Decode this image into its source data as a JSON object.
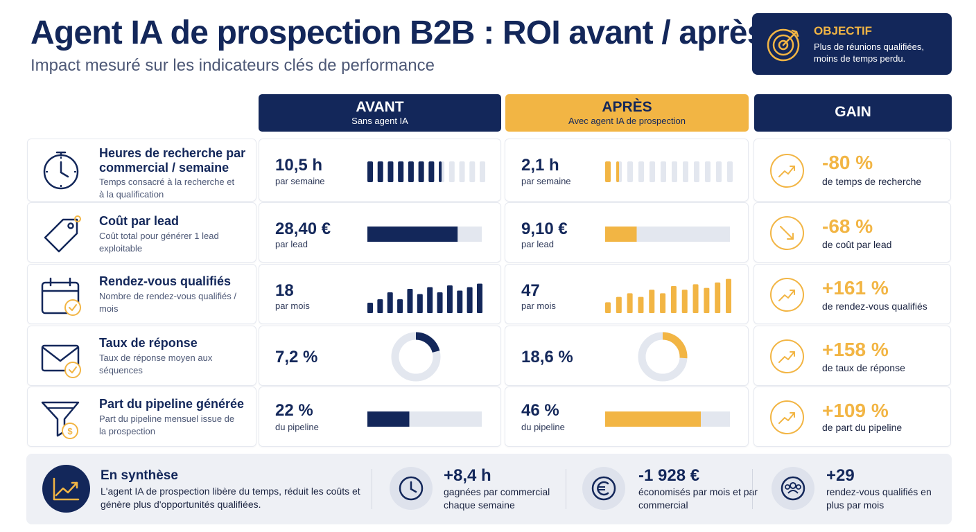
{
  "title": "Agent IA de prospection B2B : ROI avant / après",
  "subtitle": "Impact mesuré sur les indicateurs clés de performance",
  "objective": {
    "title": "OBJECTIF",
    "text": "Plus de réunions qualifiées, moins de temps perdu."
  },
  "columns": {
    "avant": {
      "title": "AVANT",
      "subtitle": "Sans agent IA"
    },
    "apres": {
      "title": "APRÈS",
      "subtitle": "Avec agent IA de prospection"
    },
    "gain": {
      "title": "GAIN"
    }
  },
  "colors": {
    "navy": "#13275a",
    "gold": "#f2b544",
    "track": "#e3e7ef"
  },
  "rows": [
    {
      "icon": "clock-icon",
      "title": "Heures de recherche par commercial / semaine",
      "desc": "Temps consacré à la recherche et à la qualification",
      "avant": {
        "value": "10,5 h",
        "unit": "par semaine"
      },
      "apres": {
        "value": "2,1 h",
        "unit": "par semaine"
      },
      "gain": {
        "pct": "-80 %",
        "label": "de temps de recherche",
        "direction": "up"
      }
    },
    {
      "icon": "price-tag-icon",
      "title": "Coût par lead",
      "desc": "Coût total pour générer 1 lead exploitable",
      "avant": {
        "value": "28,40 €",
        "unit": "par lead"
      },
      "apres": {
        "value": "9,10 €",
        "unit": "par lead"
      },
      "gain": {
        "pct": "-68 %",
        "label": "de coût par lead",
        "direction": "down"
      }
    },
    {
      "icon": "calendar-check-icon",
      "title": "Rendez-vous qualifiés",
      "desc": "Nombre de rendez-vous qualifiés / mois",
      "avant": {
        "value": "18",
        "unit": "par mois"
      },
      "apres": {
        "value": "47",
        "unit": "par mois"
      },
      "gain": {
        "pct": "+161 %",
        "label": "de rendez-vous qualifiés",
        "direction": "up"
      }
    },
    {
      "icon": "envelope-check-icon",
      "title": "Taux de réponse",
      "desc": "Taux de réponse moyen aux séquences",
      "avant": {
        "value": "7,2 %",
        "unit": ""
      },
      "apres": {
        "value": "18,6 %",
        "unit": ""
      },
      "gain": {
        "pct": "+158 %",
        "label": "de taux de réponse",
        "direction": "up"
      }
    },
    {
      "icon": "funnel-coin-icon",
      "title": "Part du pipeline générée",
      "desc": "Part du pipeline mensuel issue de la prospection",
      "avant": {
        "value": "22 %",
        "unit": "du pipeline"
      },
      "apres": {
        "value": "46 %",
        "unit": "du pipeline"
      },
      "gain": {
        "pct": "+109 %",
        "label": "de part du pipeline",
        "direction": "up"
      }
    }
  ],
  "summary": {
    "title": "En synthèse",
    "text": "L'agent IA de prospection libère du temps, réduit les coûts et génère plus d'opportunités qualifiées.",
    "kpis": [
      {
        "icon": "clock-icon",
        "value": "+8,4 h",
        "label": "gagnées par commercial chaque semaine"
      },
      {
        "icon": "euro-icon",
        "value": "-1 928 €",
        "label": "économisés par mois et par commercial"
      },
      {
        "icon": "people-icon",
        "value": "+29",
        "label": "rendez-vous qualifiés en plus par mois"
      }
    ]
  },
  "chart_data": {
    "type": "table",
    "categories": [
      "Heures de recherche par commercial / semaine",
      "Coût par lead",
      "Rendez-vous qualifiés",
      "Taux de réponse",
      "Part du pipeline générée"
    ],
    "series": [
      {
        "name": "AVANT",
        "values": [
          10.5,
          28.4,
          18,
          7.2,
          22
        ]
      },
      {
        "name": "APRÈS",
        "values": [
          2.1,
          9.1,
          47,
          18.6,
          46
        ]
      },
      {
        "name": "GAIN",
        "values": [
          -80,
          -68,
          161,
          158,
          109
        ]
      }
    ],
    "hours_bars": {
      "total": 12,
      "avant_filled": 7.5,
      "apres_filled": 1.5
    },
    "cost_bar_max": 36,
    "meetings_bars": {
      "avant": [
        0.3,
        0.4,
        0.6,
        0.4,
        0.7,
        0.55,
        0.75,
        0.6,
        0.8,
        0.65,
        0.75,
        0.85
      ],
      "apres": [
        0.3,
        0.45,
        0.55,
        0.45,
        0.65,
        0.55,
        0.75,
        0.65,
        0.8,
        0.7,
        0.85,
        0.95
      ]
    },
    "response_donut": {
      "avant": 0.21,
      "apres": 0.26
    },
    "pipeline_bar_max": 60
  }
}
